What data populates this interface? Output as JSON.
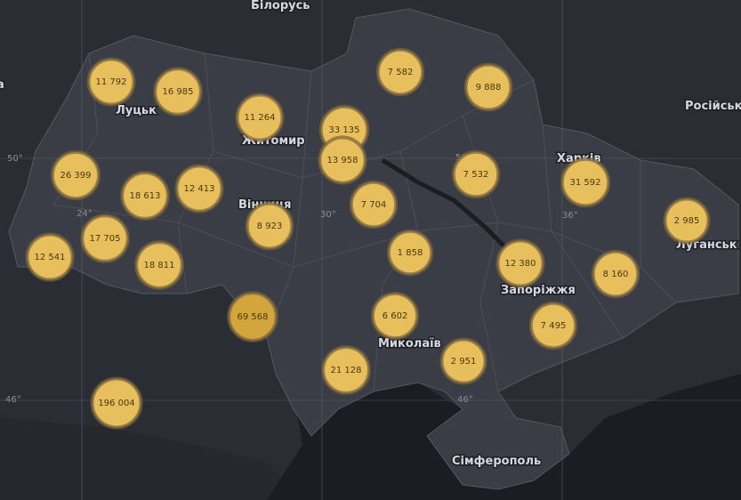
{
  "places": [
    "Білорусь",
    "Луцьк",
    "Житомир",
    "Вінниця",
    "Харків",
    "Луганськ",
    "Запоріжжя",
    "Миколаїв",
    "Сімферополь",
    "Російськ",
    "а"
  ],
  "graticule_labels": [
    "50°",
    "24°",
    "30°",
    "50°",
    "36°",
    "46°",
    "46°"
  ],
  "markers": [
    {
      "value": 11792,
      "label": "11 792"
    },
    {
      "value": 16985,
      "label": "16 985"
    },
    {
      "value": 11264,
      "label": "11 264"
    },
    {
      "value": 33135,
      "label": "33 135"
    },
    {
      "value": 13958,
      "label": "13 958"
    },
    {
      "value": 7582,
      "label": "7 582"
    },
    {
      "value": 9888,
      "label": "9 888"
    },
    {
      "value": 26399,
      "label": "26 399"
    },
    {
      "value": 18613,
      "label": "18 613"
    },
    {
      "value": 12413,
      "label": "12 413"
    },
    {
      "value": 7704,
      "label": "7 704"
    },
    {
      "value": 7532,
      "label": "7 532"
    },
    {
      "value": 31592,
      "label": "31 592"
    },
    {
      "value": 2985,
      "label": "2 985"
    },
    {
      "value": 8923,
      "label": "8 923"
    },
    {
      "value": 17705,
      "label": "17 705"
    },
    {
      "value": 12541,
      "label": "12 541"
    },
    {
      "value": 18811,
      "label": "18 811"
    },
    {
      "value": 1858,
      "label": "1 858"
    },
    {
      "value": 12380,
      "label": "12 380"
    },
    {
      "value": 8160,
      "label": "8 160"
    },
    {
      "value": 69568,
      "label": "69 568"
    },
    {
      "value": 6602,
      "label": "6 602"
    },
    {
      "value": 7495,
      "label": "7 495"
    },
    {
      "value": 21128,
      "label": "21 128"
    },
    {
      "value": 2951,
      "label": "2 951"
    },
    {
      "value": 196004,
      "label": "196 004"
    }
  ]
}
